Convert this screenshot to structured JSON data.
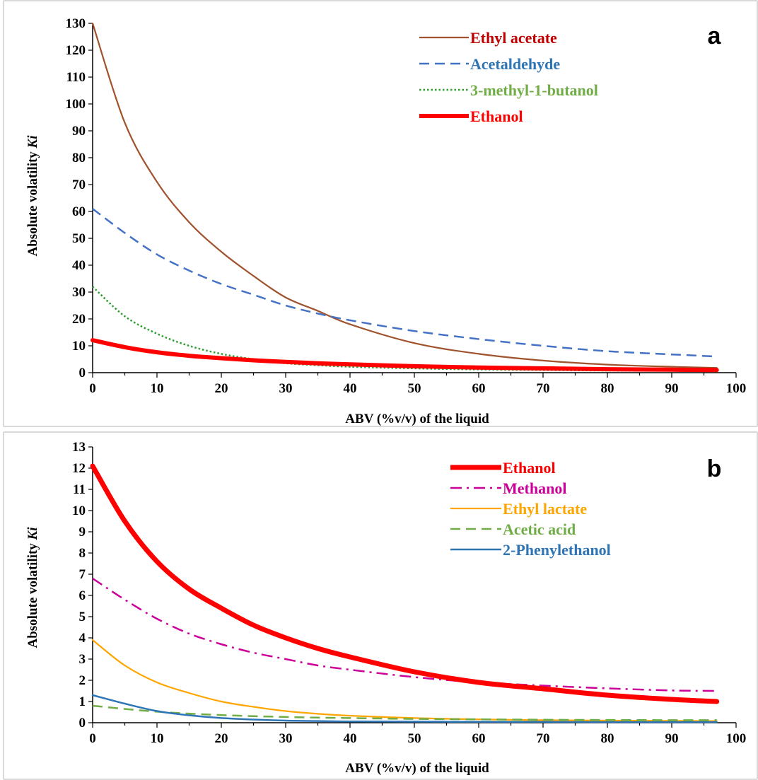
{
  "chart_data": [
    {
      "type": "line",
      "panel_label": "a",
      "xlabel": "ABV (%v/v) of the liquid",
      "ylabel": "Absolute volatility",
      "ylabel_italic": "Ki",
      "xlim": [
        0,
        100
      ],
      "ylim": [
        0,
        130
      ],
      "xticks": [
        0,
        10,
        20,
        30,
        40,
        50,
        60,
        70,
        80,
        90,
        100
      ],
      "yticks": [
        0,
        10,
        20,
        30,
        40,
        50,
        60,
        70,
        80,
        90,
        100,
        110,
        120,
        130
      ],
      "grid": false,
      "legend_position": "top-right",
      "series": [
        {
          "name": "Ethyl acetate",
          "color": "#a0522d",
          "label_color": "#c00000",
          "style": "solid",
          "width": 2.2,
          "x": [
            0,
            5,
            10,
            15,
            20,
            25,
            30,
            35,
            40,
            50,
            60,
            70,
            80,
            90,
            97
          ],
          "y": [
            130,
            93,
            71,
            56,
            45,
            36,
            28,
            23,
            18,
            11,
            7,
            4.5,
            3,
            2.2,
            1.8
          ]
        },
        {
          "name": "Acetaldehyde",
          "color": "#4472c4",
          "label_color": "#2e75b6",
          "style": "dashed",
          "width": 2.5,
          "x": [
            0,
            5,
            10,
            15,
            20,
            25,
            30,
            35,
            40,
            50,
            60,
            70,
            80,
            90,
            97
          ],
          "y": [
            61,
            52,
            44,
            38,
            33,
            29,
            25,
            22,
            19.5,
            15.5,
            12.5,
            10,
            8,
            6.8,
            6
          ]
        },
        {
          "name": "3-methyl-1-butanol",
          "color": "#2e9e2e",
          "label_color": "#70ad47",
          "style": "dotted",
          "width": 2.5,
          "x": [
            0,
            5,
            10,
            15,
            20,
            25,
            30,
            35,
            40,
            50,
            60,
            70,
            80,
            90,
            97
          ],
          "y": [
            32,
            21,
            14.5,
            10,
            7,
            5,
            3.5,
            2.8,
            2.2,
            1.6,
            1.2,
            1,
            0.8,
            0.7,
            0.6
          ]
        },
        {
          "name": "Ethanol",
          "color": "#ff0000",
          "label_color": "#ff0000",
          "style": "solid",
          "width": 6,
          "x": [
            0,
            5,
            10,
            15,
            20,
            25,
            30,
            35,
            40,
            50,
            60,
            70,
            80,
            90,
            97
          ],
          "y": [
            12.1,
            9.5,
            7.6,
            6.3,
            5.4,
            4.6,
            4,
            3.5,
            3.1,
            2.4,
            1.9,
            1.6,
            1.3,
            1.1,
            1
          ]
        }
      ]
    },
    {
      "type": "line",
      "panel_label": "b",
      "xlabel": "ABV (%v/v) of the liquid",
      "ylabel": "Absolute volatility",
      "ylabel_italic": "Ki",
      "xlim": [
        0,
        100
      ],
      "ylim": [
        0,
        13
      ],
      "xticks": [
        0,
        10,
        20,
        30,
        40,
        50,
        60,
        70,
        80,
        90,
        100
      ],
      "yticks": [
        0,
        1,
        2,
        3,
        4,
        5,
        6,
        7,
        8,
        9,
        10,
        11,
        12,
        13
      ],
      "grid": false,
      "legend_position": "top-right",
      "series": [
        {
          "name": "Ethanol",
          "color": "#ff0000",
          "label_color": "#ff0000",
          "style": "solid",
          "width": 7,
          "x": [
            0,
            5,
            10,
            15,
            20,
            25,
            30,
            35,
            40,
            50,
            60,
            70,
            80,
            90,
            97
          ],
          "y": [
            12.1,
            9.5,
            7.6,
            6.3,
            5.4,
            4.6,
            4,
            3.5,
            3.1,
            2.4,
            1.9,
            1.6,
            1.3,
            1.1,
            1
          ]
        },
        {
          "name": "Methanol",
          "color": "#cc0099",
          "label_color": "#cc0099",
          "style": "dashdot",
          "width": 2.5,
          "x": [
            0,
            5,
            10,
            15,
            20,
            25,
            30,
            35,
            40,
            50,
            60,
            70,
            80,
            90,
            97
          ],
          "y": [
            6.8,
            5.8,
            4.9,
            4.2,
            3.7,
            3.3,
            3,
            2.7,
            2.5,
            2.15,
            1.9,
            1.75,
            1.62,
            1.52,
            1.5
          ]
        },
        {
          "name": "Ethyl lactate",
          "color": "#ffa500",
          "label_color": "#ffa500",
          "style": "solid",
          "width": 2.2,
          "x": [
            0,
            5,
            10,
            15,
            20,
            25,
            30,
            35,
            40,
            50,
            60,
            70,
            80,
            90,
            97
          ],
          "y": [
            3.9,
            2.7,
            1.9,
            1.4,
            1,
            0.75,
            0.55,
            0.42,
            0.33,
            0.22,
            0.16,
            0.12,
            0.1,
            0.09,
            0.08
          ]
        },
        {
          "name": "Acetic acid",
          "color": "#70ad47",
          "label_color": "#70ad47",
          "style": "dashed",
          "width": 2.5,
          "x": [
            0,
            5,
            10,
            15,
            20,
            25,
            30,
            35,
            40,
            50,
            60,
            70,
            80,
            90,
            97
          ],
          "y": [
            0.8,
            0.65,
            0.52,
            0.43,
            0.36,
            0.31,
            0.27,
            0.24,
            0.22,
            0.18,
            0.16,
            0.14,
            0.13,
            0.12,
            0.12
          ]
        },
        {
          "name": "2-Phenylethanol",
          "color": "#2e75b6",
          "label_color": "#2e75b6",
          "style": "solid",
          "width": 2.5,
          "x": [
            0,
            5,
            10,
            15,
            20,
            25,
            30,
            35,
            40,
            50,
            60,
            70,
            80,
            90,
            97
          ],
          "y": [
            1.3,
            0.9,
            0.55,
            0.35,
            0.22,
            0.15,
            0.1,
            0.08,
            0.06,
            0.05,
            0.04,
            0.04,
            0.03,
            0.03,
            0.03
          ]
        }
      ]
    }
  ]
}
